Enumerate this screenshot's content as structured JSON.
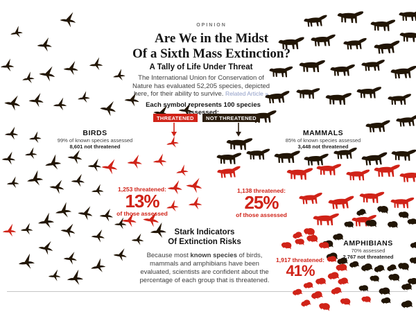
{
  "page": {
    "kicker": "OPINION",
    "title_line1": "Are We in the Midst",
    "title_line2": "Of a Sixth Mass Extinction?"
  },
  "tally": {
    "heading": "A Tally of Life Under Threat",
    "body": "The International Union for Conservation of Nature has evaluated 52,205 species, depicted here, for their ability to survive. ",
    "related_link": "Related Article »"
  },
  "legend": {
    "text": "Each symbol represents 100 species assessed:",
    "threatened_label": "THREATENED",
    "not_threatened_label": "NOT THREATENED"
  },
  "groups": {
    "birds": {
      "name": "BIRDS",
      "assessed_note": "99% of known species assessed",
      "not_threatened_note": "8,601 not threatened",
      "threatened_count_label": "1,253 threatened:",
      "threatened_pct": "13%",
      "pct_note": "of those assessed"
    },
    "mammals": {
      "name": "MAMMALS",
      "assessed_note": "85% of known species assessed",
      "not_threatened_note": "3,448 not threatened",
      "threatened_count_label": "1,138 threatened:",
      "threatened_pct": "25%",
      "pct_note": "of those assessed"
    },
    "amphibians": {
      "name": "AMPHIBIANS",
      "assessed_note": "70% assessed",
      "not_threatened_note": "2,767 not threatened",
      "threatened_count_label": "1,917 threatened:",
      "threatened_pct": "41%"
    }
  },
  "stark": {
    "heading_line1": "Stark Indicators",
    "heading_line2": "Of Extinction Risks",
    "body_pre": "Because most ",
    "body_bold": "known species",
    "body_post": " of birds, mammals and amphibians have been evaluated, scientists are confident about the percentage of each group that is threatened."
  },
  "colors": {
    "threatened_red": "#d02318",
    "not_threatened_black": "#211505",
    "badge_black_bg": "#2b1d0e",
    "link_blue": "#8e9cc6"
  },
  "chart_data": {
    "type": "pictogram",
    "title": "A Tally of Life Under Threat",
    "unit_species_per_symbol": 100,
    "total_species_evaluated": 52205,
    "legend": [
      "THREATENED",
      "NOT THREATENED"
    ],
    "groups": [
      {
        "name": "BIRDS",
        "assessed": "99% of known species assessed",
        "not_threatened": 8601,
        "threatened": 1253,
        "threatened_pct_of_assessed": 13,
        "symbol": "flying goose"
      },
      {
        "name": "MAMMALS",
        "assessed": "85% of known species assessed",
        "not_threatened": 3448,
        "threatened": 1138,
        "threatened_pct_of_assessed": 25,
        "symbol": "big cat"
      },
      {
        "name": "AMPHIBIANS",
        "assessed": "70% assessed",
        "not_threatened": 2767,
        "threatened": 1917,
        "threatened_pct_of_assessed": 41,
        "symbol": "frog"
      }
    ]
  }
}
